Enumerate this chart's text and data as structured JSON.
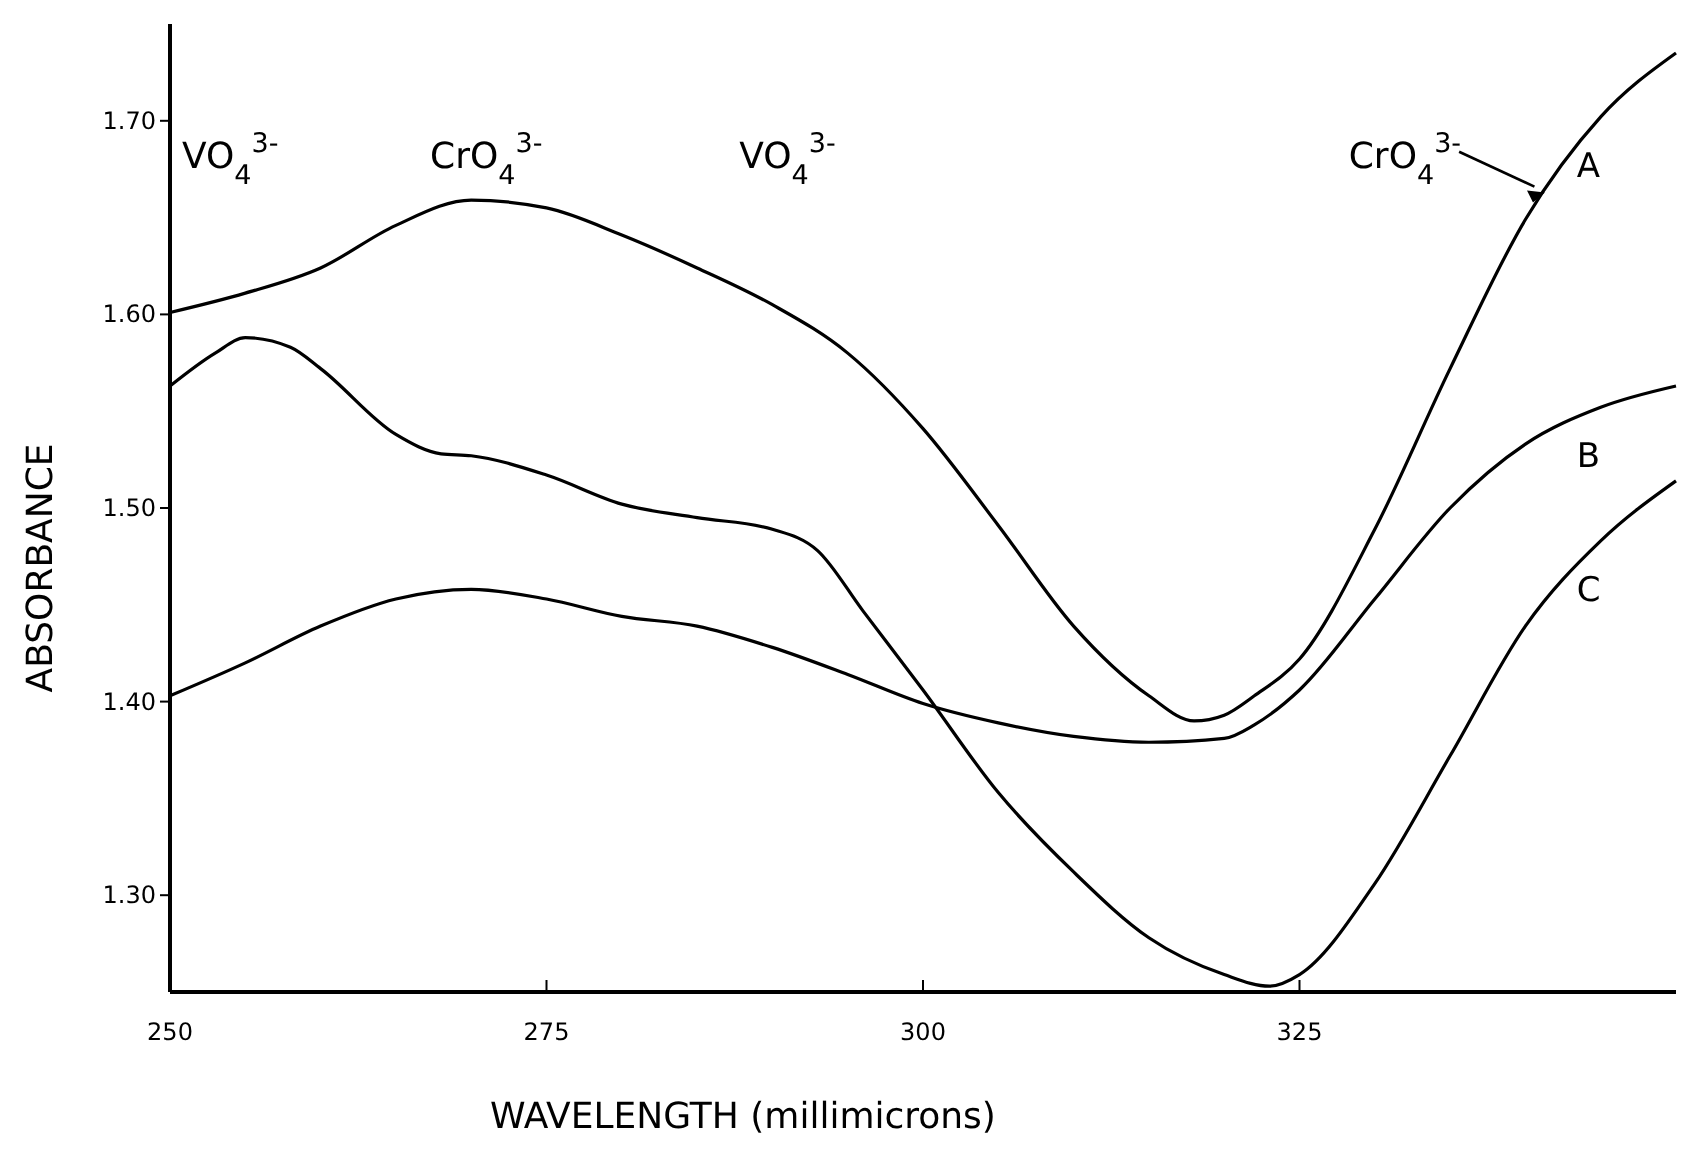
{
  "chart_data": {
    "type": "line",
    "xlabel": "WAVELENGTH (millimicrons)",
    "ylabel": "ABSORBANCE",
    "xlim": [
      250,
      350
    ],
    "ylim": [
      1.25,
      1.75
    ],
    "xticks": [
      250,
      275,
      300,
      325
    ],
    "yticks": [
      {
        "value": 1.3,
        "label": "1.30"
      },
      {
        "value": 1.4,
        "label": "1.40"
      },
      {
        "value": 1.5,
        "label": "1.50"
      },
      {
        "value": 1.6,
        "label": "1.60"
      },
      {
        "value": 1.7,
        "label": "1.70"
      }
    ],
    "grid": false,
    "marker": "none",
    "line_style": "solid",
    "series": [
      {
        "name": "A",
        "color": "#000000",
        "x": [
          250,
          255,
          260,
          265,
          270,
          275,
          280,
          285,
          290,
          295,
          300,
          305,
          310,
          315,
          318,
          320,
          322,
          325,
          330,
          335,
          340,
          345,
          350
        ],
        "values": [
          1.601,
          1.611,
          1.624,
          1.646,
          1.659,
          1.655,
          1.641,
          1.624,
          1.605,
          1.58,
          1.541,
          1.491,
          1.439,
          1.403,
          1.39,
          1.393,
          1.403,
          1.422,
          1.489,
          1.572,
          1.649,
          1.702,
          1.735
        ]
      },
      {
        "name": "B",
        "color": "#000000",
        "x": [
          250,
          255,
          260,
          265,
          270,
          275,
          280,
          285,
          290,
          295,
          300,
          305,
          310,
          315,
          320,
          322,
          325,
          330,
          335,
          340,
          345,
          350
        ],
        "values": [
          1.403,
          1.42,
          1.439,
          1.453,
          1.458,
          1.453,
          1.444,
          1.439,
          1.428,
          1.414,
          1.399,
          1.389,
          1.382,
          1.379,
          1.381,
          1.388,
          1.406,
          1.453,
          1.5,
          1.533,
          1.552,
          1.563
        ]
      },
      {
        "name": "C",
        "color": "#000000",
        "x": [
          250,
          253,
          255,
          258,
          260,
          265,
          268,
          270,
          275,
          280,
          285,
          290,
          293,
          296,
          300,
          305,
          310,
          315,
          320,
          323,
          325,
          330,
          335,
          340,
          345,
          350
        ],
        "values": [
          1.563,
          1.58,
          1.588,
          1.583,
          1.572,
          1.538,
          1.528,
          1.527,
          1.517,
          1.502,
          1.495,
          1.489,
          1.478,
          1.447,
          1.406,
          1.353,
          1.312,
          1.278,
          1.259,
          1.253,
          1.259,
          1.306,
          1.372,
          1.439,
          1.483,
          1.514
        ]
      }
    ],
    "annotations": [
      "VO$_{4}$$^{3-}$",
      "CrO$_{4}$$^{3-}$",
      "VO$_{4}$$^{3-}$",
      "CrO$_{4}$$^{3-}$"
    ]
  }
}
